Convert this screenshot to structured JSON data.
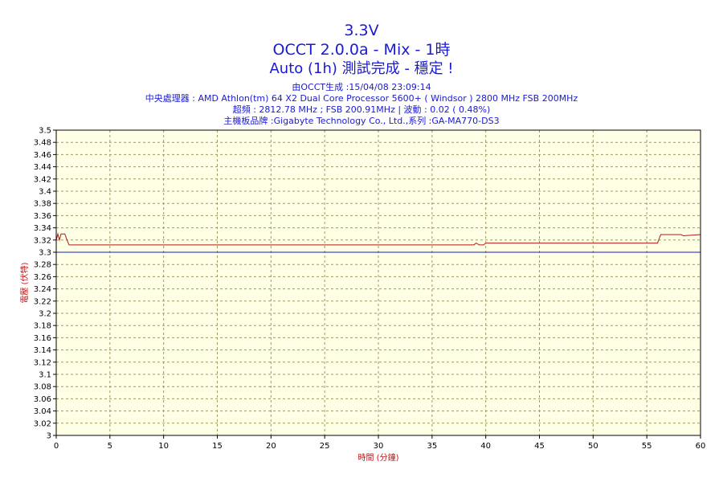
{
  "header": {
    "title_line1": "3.3V",
    "title_line2": "OCCT 2.0.0a - Mix - 1時",
    "title_line3": "Auto (1h) 測試完成 - 穩定 !",
    "info_line1": "由OCCT生成 :15/04/08 23:09:14",
    "info_line2": "中央處理器 : AMD Athlon(tm) 64 X2 Dual Core Processor 5600+ ( Windsor ) 2800 MHz FSB 200MHz",
    "info_line3": "超頻 : 2812.78 MHz ; FSB 200.91MHz | 波動 : 0.02 ( 0.48%)",
    "info_line4": "主機板品牌 :Gigabyte Technology Co., Ltd.,系列 :GA-MA770-DS3"
  },
  "colors": {
    "title": "#1a1ad2",
    "plot_bg": "#ffffe6",
    "grid": "#9a9a6a",
    "measured_series": "#b01818",
    "reference_line": "#1a1ad2",
    "axis_title": "#c01010"
  },
  "chart_data": {
    "type": "line",
    "xlabel": "時間 (分鐘)",
    "ylabel": "電壓 (伏特)",
    "xlim": [
      0,
      60
    ],
    "ylim": [
      3.0,
      3.5
    ],
    "x_ticks": [
      0,
      5,
      10,
      15,
      20,
      25,
      30,
      35,
      40,
      45,
      50,
      55,
      60
    ],
    "y_ticks": [
      3,
      3.02,
      3.04,
      3.06,
      3.08,
      3.1,
      3.12,
      3.14,
      3.16,
      3.18,
      3.2,
      3.22,
      3.24,
      3.26,
      3.28,
      3.3,
      3.32,
      3.34,
      3.36,
      3.38,
      3.4,
      3.42,
      3.44,
      3.46,
      3.48,
      3.5
    ],
    "grid": true,
    "series": [
      {
        "x": [
          0,
          0.15,
          0.3,
          0.45,
          0.6,
          0.8,
          1.0,
          1.2,
          1.4,
          38.9,
          39.1,
          39.4,
          39.8,
          40.0,
          56.0,
          56.3,
          58.2,
          58.4,
          60
        ],
        "y": [
          3.32,
          3.33,
          3.32,
          3.33,
          3.33,
          3.33,
          3.32,
          3.312,
          3.312,
          3.312,
          3.315,
          3.312,
          3.312,
          3.315,
          3.315,
          3.329,
          3.329,
          3.327,
          3.329
        ]
      },
      {
        "x": [
          0,
          60
        ],
        "y": [
          3.3,
          3.3
        ]
      }
    ]
  }
}
